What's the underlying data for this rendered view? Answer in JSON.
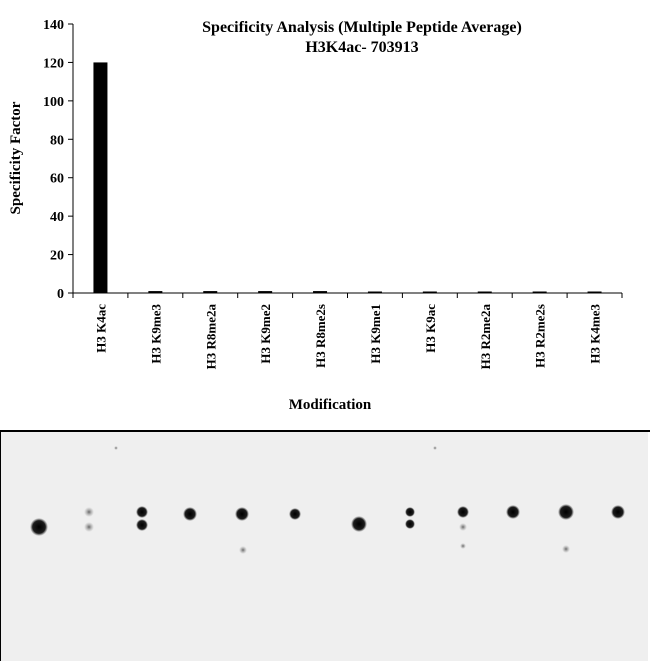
{
  "chart_data": {
    "type": "bar",
    "title": "Specificity Analysis (Multiple Peptide Average)",
    "subtitle": "H3K4ac- 703913",
    "xlabel": "Modification",
    "ylabel": "Specificity Factor",
    "ylim": [
      0,
      140
    ],
    "yticks": [
      0,
      20,
      40,
      60,
      80,
      100,
      120,
      140
    ],
    "categories": [
      "H3 K4ac",
      "H3 K9me3",
      "H3 R8me2a",
      "H3 K9me2",
      "H3 R8me2s",
      "H3 K9me1",
      "H3 K9ac",
      "H3 R2me2a",
      "H3 R2me2s",
      "H3 K4me3"
    ],
    "values": [
      120,
      1,
      1,
      1,
      1,
      0.5,
      0.5,
      0.5,
      0.5,
      0.5
    ],
    "bar_color": "#000000",
    "grid": false,
    "legend": "none"
  },
  "blot": {
    "background_color": "#efefef",
    "spot_color": "#111111"
  }
}
